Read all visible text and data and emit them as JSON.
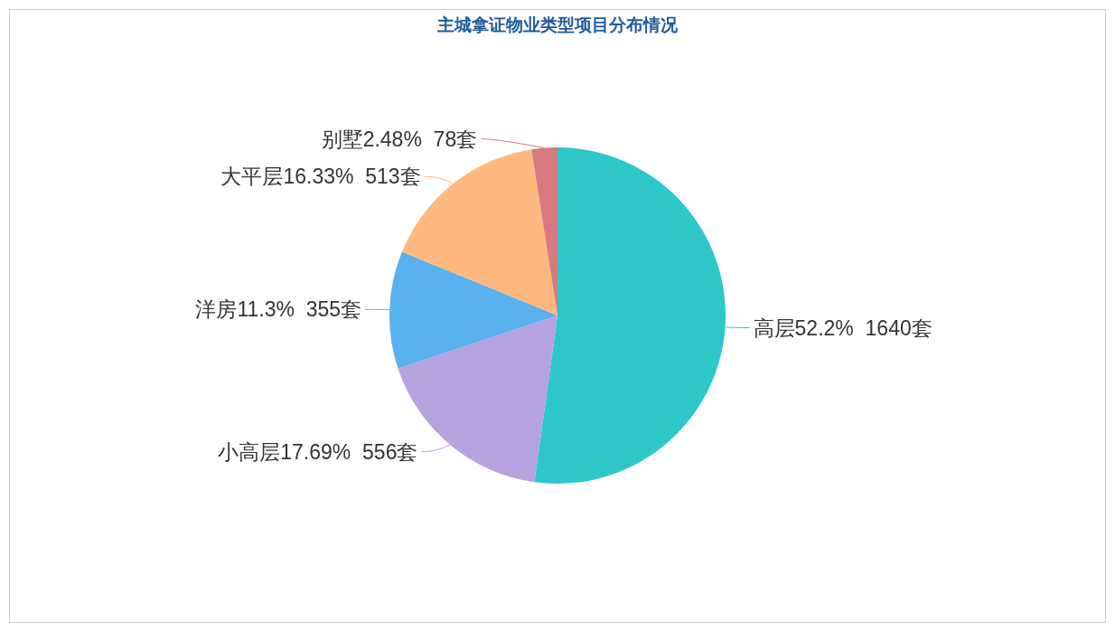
{
  "chart_data": {
    "type": "pie",
    "title": "主城拿证物业类型项目分布情况",
    "categories": [
      "高层",
      "小高层",
      "洋房",
      "大平层",
      "别墅"
    ],
    "values": [
      1640,
      556,
      355,
      513,
      78
    ],
    "colors": [
      "#2ec7c9",
      "#b6a2de",
      "#5ab1ef",
      "#ffb980",
      "#d87a80"
    ],
    "value_labels": [
      "52.2%  1640套",
      "17.69%  556套",
      "11.3%  355套",
      "16.33%  513套",
      "2.48%  78套"
    ]
  }
}
